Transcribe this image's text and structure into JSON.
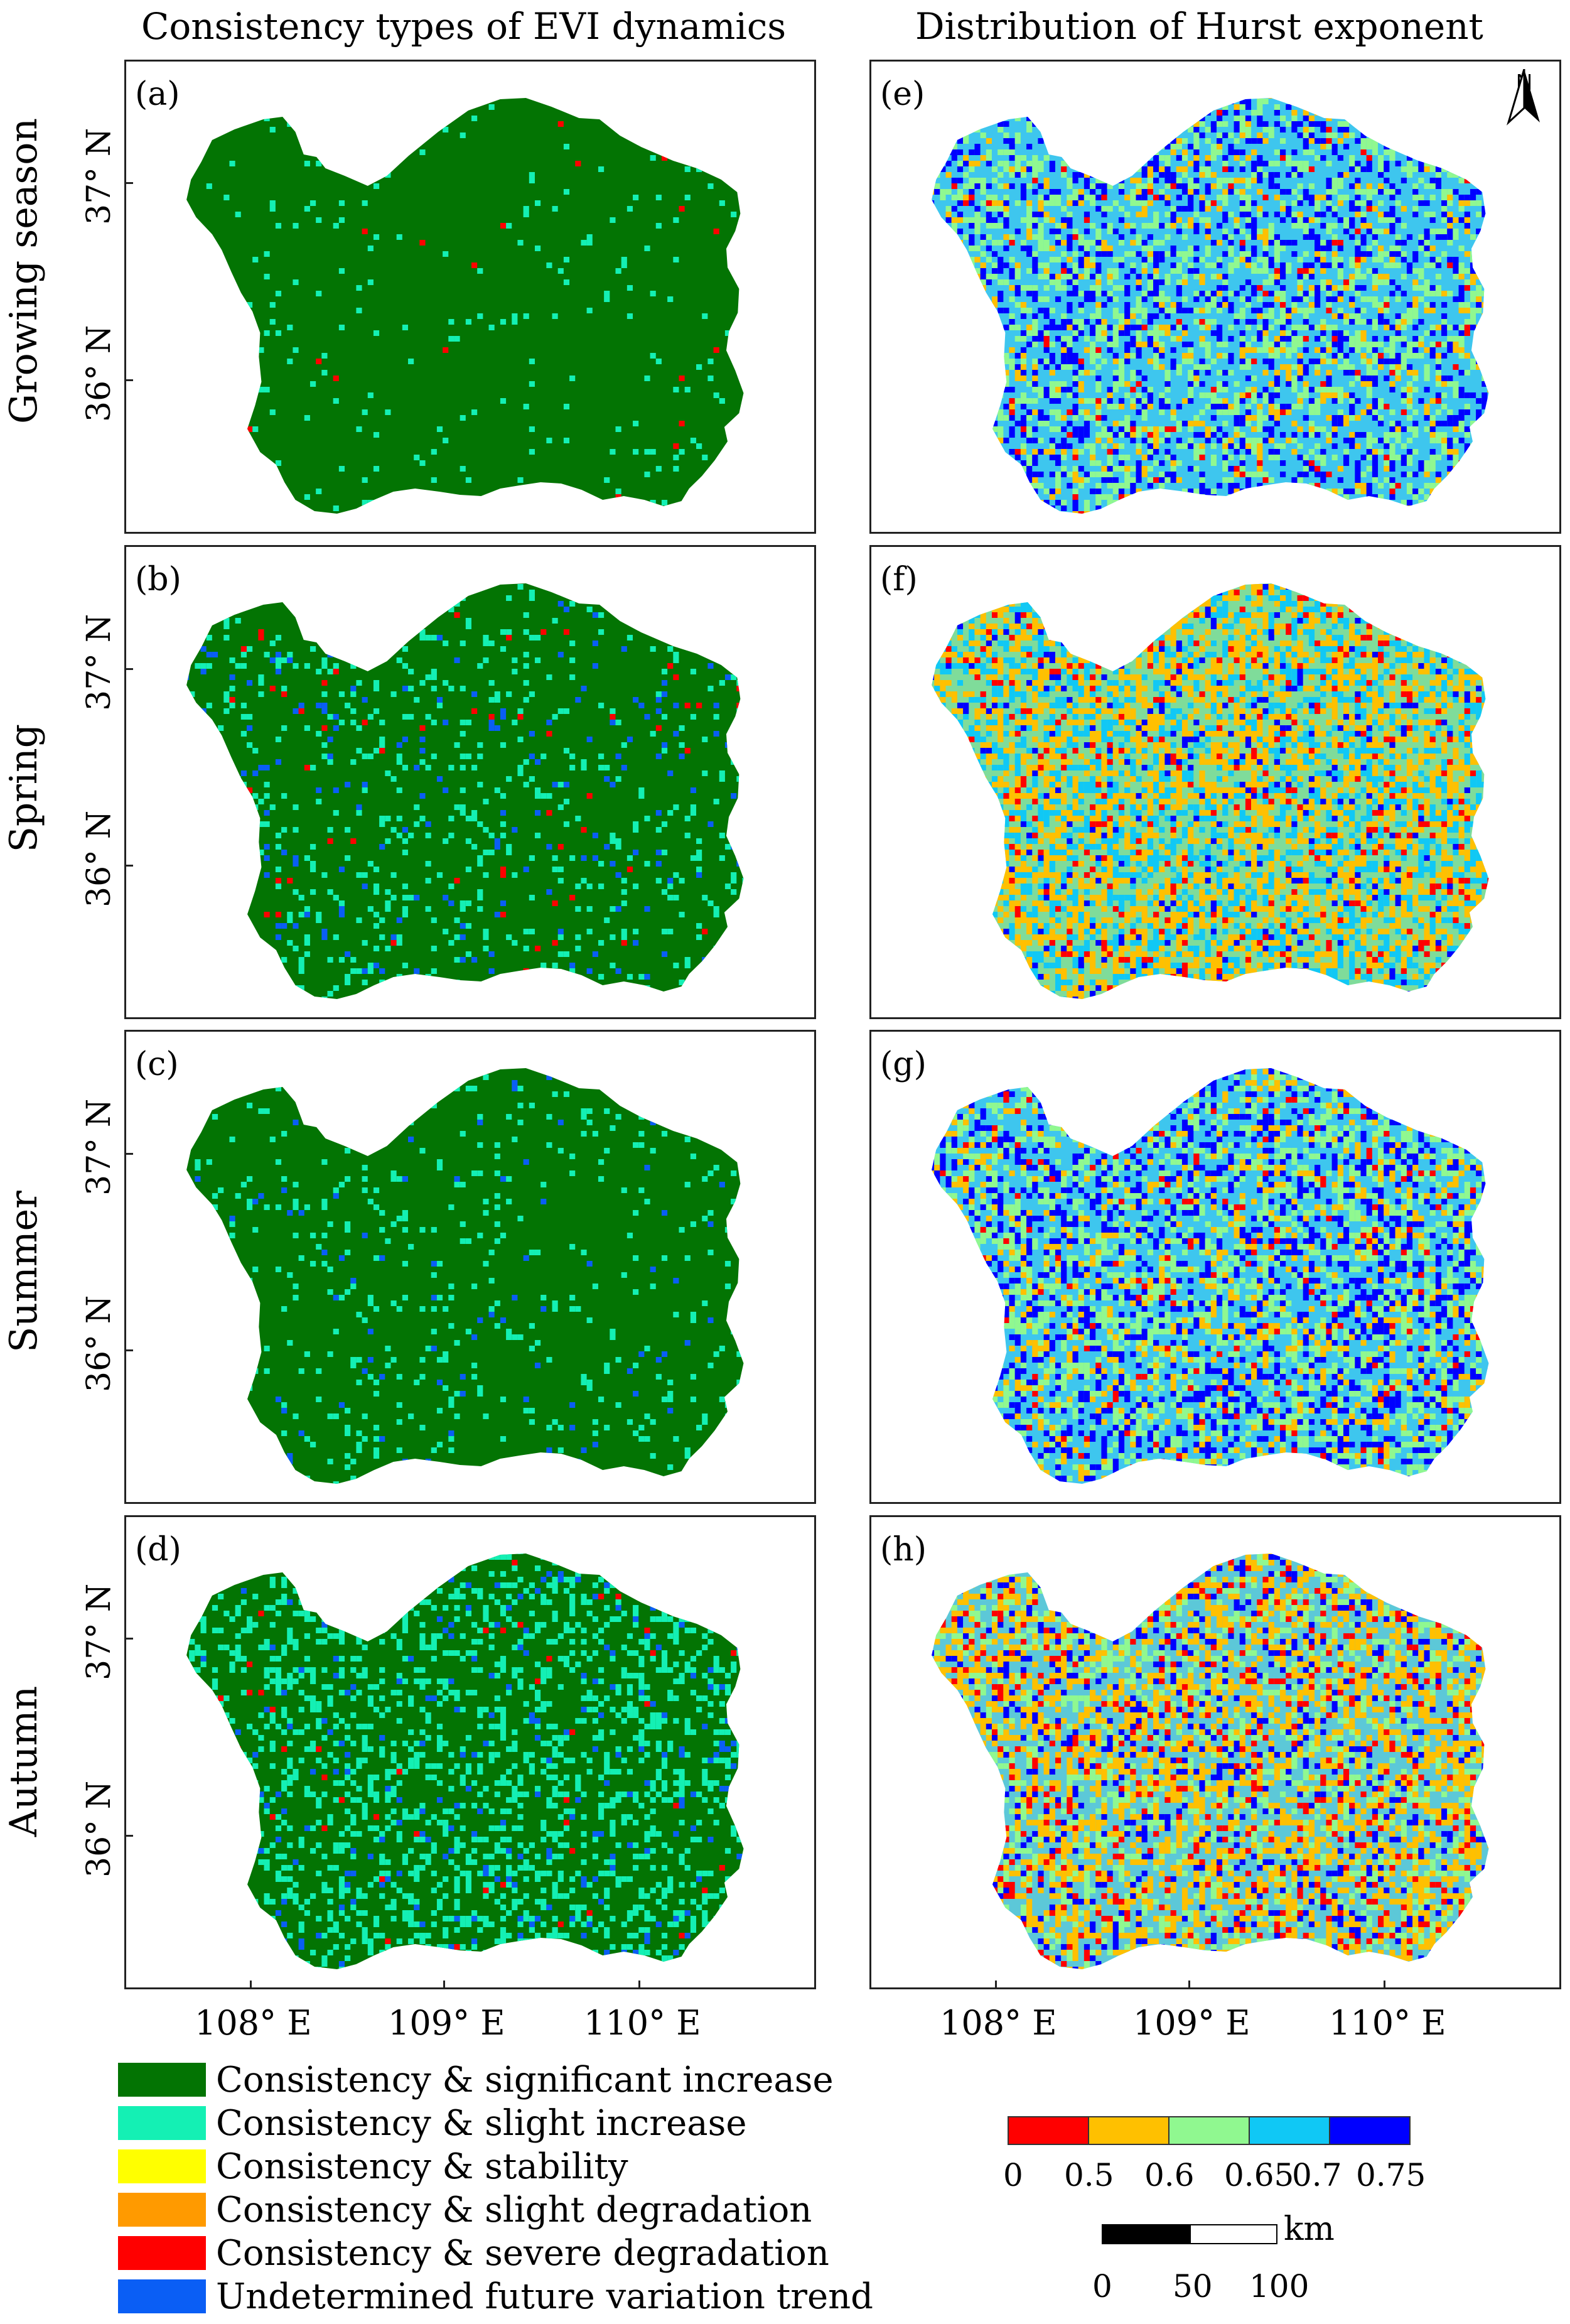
{
  "column_titles": {
    "left": "Consistency types of EVI dynamics",
    "right": "Distribution of Hurst exponent"
  },
  "row_labels": [
    "Growing season",
    "Spring",
    "Summer",
    "Autumn"
  ],
  "panel_labels": {
    "left": [
      "(a)",
      "(b)",
      "(c)",
      "(d)"
    ],
    "right": [
      "(e)",
      "(f)",
      "(g)",
      "(h)"
    ]
  },
  "latitude_ticks": [
    "37° N",
    "36° N"
  ],
  "longitude_ticks": [
    "108° E",
    "109° E",
    "110° E"
  ],
  "north_arrow_label": "N",
  "legend": [
    {
      "label": "Consistency & significant increase",
      "color": "#037403"
    },
    {
      "label": "Consistency & slight increase",
      "color": "#14f0b4"
    },
    {
      "label": "Consistency & stability",
      "color": "#ffff00"
    },
    {
      "label": "Consistency & slight degradation",
      "color": "#ff9a00"
    },
    {
      "label": "Consistency & severe degradation",
      "color": "#ff0000"
    },
    {
      "label": "Undetermined future variation trend",
      "color": "#0a5ef5"
    }
  ],
  "colorbar": {
    "colors": [
      "#ff0000",
      "#ffc000",
      "#90f890",
      "#10c8f5",
      "#0000ff"
    ],
    "labels": [
      "0",
      "0.5",
      "0.6",
      "0.65",
      "0.7",
      "0.75"
    ]
  },
  "scale_bar": {
    "unit": "km",
    "labels": [
      "0",
      "50",
      "100"
    ]
  },
  "colors": {
    "base_green": "#037403",
    "hurst_base": "#3ec6ee"
  }
}
